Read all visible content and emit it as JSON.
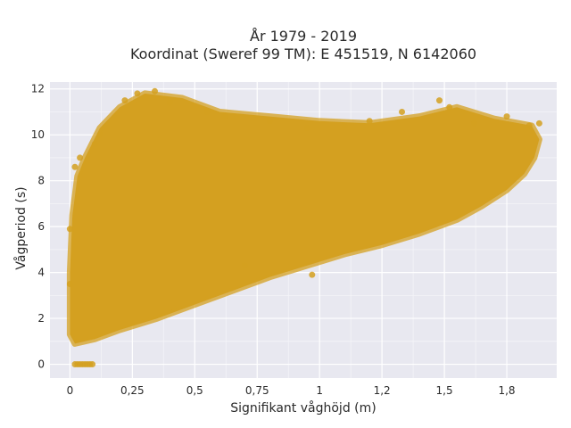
{
  "chart_data": {
    "type": "scatter",
    "title_line1": "År 1979 - 2019",
    "title_line2": "Koordinat (Sweref 99 TM): E 451519, N 6142060",
    "xlabel": "Signifikant våghöjd (m)",
    "ylabel": "Vågperiod (s)",
    "xlim": [
      -0.08,
      1.95
    ],
    "ylim": [
      -0.6,
      12.3
    ],
    "x_ticks": [
      {
        "value": 0,
        "label": "0"
      },
      {
        "value": 0.25,
        "label": "0,25"
      },
      {
        "value": 0.5,
        "label": "0,5"
      },
      {
        "value": 0.75,
        "label": "0,75"
      },
      {
        "value": 1.0,
        "label": "1"
      },
      {
        "value": 1.25,
        "label": "1,2"
      },
      {
        "value": 1.5,
        "label": "1,5"
      },
      {
        "value": 1.75,
        "label": "1,8"
      }
    ],
    "y_ticks": [
      {
        "value": 0,
        "label": "0"
      },
      {
        "value": 2,
        "label": "2"
      },
      {
        "value": 4,
        "label": "4"
      },
      {
        "value": 6,
        "label": "6"
      },
      {
        "value": 8,
        "label": "8"
      },
      {
        "value": 10,
        "label": "10"
      },
      {
        "value": 12,
        "label": "12"
      }
    ],
    "grid": true,
    "point_color": "#d4a020",
    "background_color": "#e8e8f0",
    "point_cloud_outline": [
      [
        0.0,
        1.3
      ],
      [
        0.02,
        0.9
      ],
      [
        0.1,
        1.1
      ],
      [
        0.2,
        1.5
      ],
      [
        0.35,
        2.0
      ],
      [
        0.5,
        2.6
      ],
      [
        0.65,
        3.2
      ],
      [
        0.8,
        3.8
      ],
      [
        0.95,
        4.3
      ],
      [
        1.1,
        4.8
      ],
      [
        1.25,
        5.2
      ],
      [
        1.4,
        5.7
      ],
      [
        1.55,
        6.3
      ],
      [
        1.65,
        6.9
      ],
      [
        1.75,
        7.6
      ],
      [
        1.82,
        8.3
      ],
      [
        1.86,
        9.0
      ],
      [
        1.88,
        9.8
      ],
      [
        1.85,
        10.4
      ],
      [
        1.7,
        10.7
      ],
      [
        1.55,
        11.2
      ],
      [
        1.4,
        10.8
      ],
      [
        1.2,
        10.5
      ],
      [
        1.0,
        10.6
      ],
      [
        0.8,
        10.8
      ],
      [
        0.6,
        11.0
      ],
      [
        0.45,
        11.6
      ],
      [
        0.3,
        11.8
      ],
      [
        0.2,
        11.2
      ],
      [
        0.12,
        10.3
      ],
      [
        0.06,
        9.0
      ],
      [
        0.03,
        8.2
      ],
      [
        0.01,
        6.5
      ],
      [
        0.0,
        4.0
      ]
    ],
    "zero_period_points": [
      {
        "x": 0.02,
        "y": 0
      },
      {
        "x": 0.03,
        "y": 0
      },
      {
        "x": 0.04,
        "y": 0
      },
      {
        "x": 0.05,
        "y": 0
      },
      {
        "x": 0.06,
        "y": 0
      },
      {
        "x": 0.07,
        "y": 0
      },
      {
        "x": 0.08,
        "y": 0
      },
      {
        "x": 0.09,
        "y": 0
      }
    ],
    "outlier_points": [
      {
        "x": 0.0,
        "y": 5.9
      },
      {
        "x": 0.0,
        "y": 3.5
      },
      {
        "x": 0.02,
        "y": 8.6
      },
      {
        "x": 0.04,
        "y": 9.0
      },
      {
        "x": 0.1,
        "y": 9.6
      },
      {
        "x": 0.12,
        "y": 10.0
      },
      {
        "x": 0.22,
        "y": 11.5
      },
      {
        "x": 0.27,
        "y": 11.8
      },
      {
        "x": 0.34,
        "y": 11.9
      },
      {
        "x": 0.4,
        "y": 11.4
      },
      {
        "x": 0.55,
        "y": 11.0
      },
      {
        "x": 0.62,
        "y": 10.8
      },
      {
        "x": 0.8,
        "y": 10.6
      },
      {
        "x": 0.95,
        "y": 10.3
      },
      {
        "x": 1.1,
        "y": 10.4
      },
      {
        "x": 1.2,
        "y": 10.6
      },
      {
        "x": 1.33,
        "y": 11.0
      },
      {
        "x": 1.48,
        "y": 11.5
      },
      {
        "x": 1.52,
        "y": 11.2
      },
      {
        "x": 1.62,
        "y": 10.5
      },
      {
        "x": 1.75,
        "y": 10.8
      },
      {
        "x": 1.84,
        "y": 10.4
      },
      {
        "x": 1.88,
        "y": 10.5
      },
      {
        "x": 0.97,
        "y": 3.9
      },
      {
        "x": 0.7,
        "y": 4.3
      }
    ]
  }
}
